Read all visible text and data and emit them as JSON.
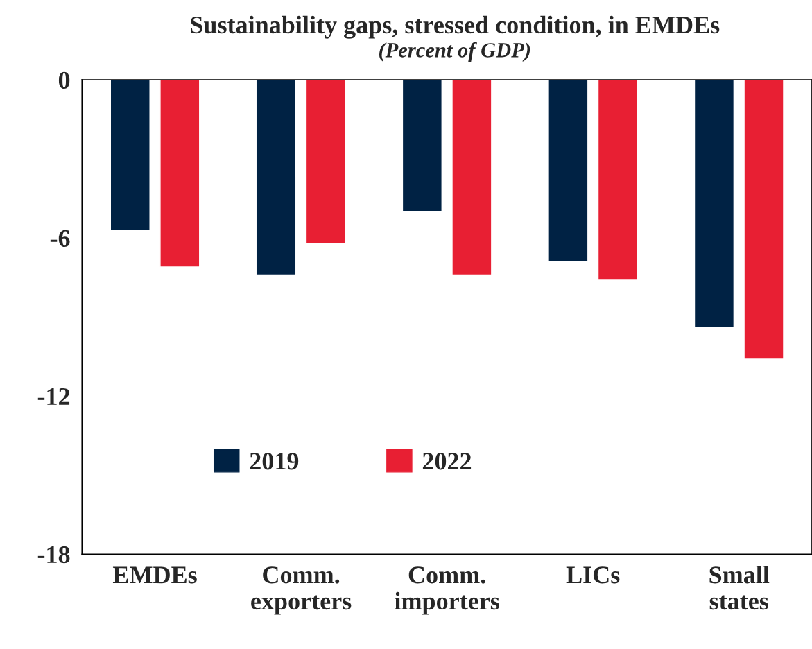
{
  "chart_data": {
    "type": "bar",
    "title": "Sustainability gaps, stressed condition, in EMDEs",
    "subtitle": "(Percent of GDP)",
    "categories": [
      "EMDEs",
      "Comm.\nexporters",
      "Comm.\nimporters",
      "LICs",
      "Small\nstates"
    ],
    "series": [
      {
        "name": "2019",
        "color": "#002244",
        "values": [
          -5.7,
          -7.4,
          -5.0,
          -6.9,
          -9.4
        ]
      },
      {
        "name": "2022",
        "color": "#e81f33",
        "values": [
          -7.1,
          -6.2,
          -7.4,
          -7.6,
          -10.6
        ]
      }
    ],
    "ylim": [
      -18,
      0
    ],
    "yticks": [
      0,
      -6,
      -12,
      -18
    ],
    "grid": false,
    "legend": "bottom left"
  }
}
